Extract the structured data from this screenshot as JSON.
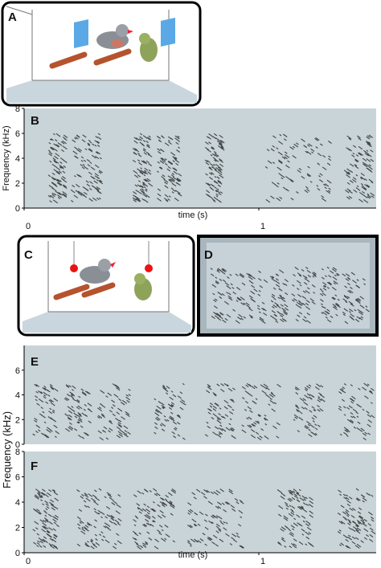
{
  "panels": {
    "a": {
      "label": "A"
    },
    "b": {
      "label": "B"
    },
    "c": {
      "label": "C"
    },
    "d": {
      "label": "D"
    },
    "e": {
      "label": "E"
    },
    "f": {
      "label": "F"
    }
  },
  "spectrogram_b": {
    "ylabel": "Frequency (kHz)",
    "ylim": [
      0,
      8
    ],
    "yticks": [
      0,
      2,
      4,
      6,
      8
    ],
    "xlabel": "time (s)",
    "xlim": [
      0,
      1.5
    ],
    "xticks": [
      0,
      1
    ]
  },
  "spectrogram_e": {
    "ylim": [
      0,
      8
    ],
    "yticks": [
      0,
      2,
      4,
      6
    ]
  },
  "spectrogram_f": {
    "ylim": [
      0,
      8
    ],
    "yticks": [
      0,
      2,
      4,
      6,
      8
    ],
    "xlim": [
      0,
      1.5
    ],
    "xticks": [
      0,
      1
    ]
  },
  "shared_ylabel": "Frequency (kHz)",
  "bottom_xlabel": "time (s)"
}
